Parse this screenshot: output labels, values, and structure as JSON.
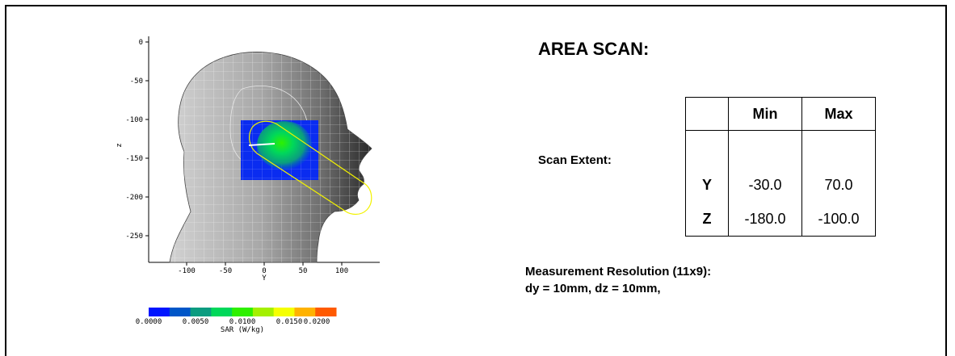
{
  "plot": {
    "z_axis_label": "z",
    "y_axis_label": "Y",
    "z_ticks": [
      "0",
      "-50",
      "-100",
      "-150",
      "-200",
      "-250"
    ],
    "y_ticks": [
      "-100",
      "-50",
      "0",
      "50",
      "100"
    ],
    "colorbar": {
      "colors": [
        "#0015ff",
        "#0056c8",
        "#0b9c80",
        "#00d85a",
        "#2ef000",
        "#a4f000",
        "#f5ff00",
        "#ffb200",
        "#ff5a00"
      ],
      "ticks": [
        "0.0000",
        "0.0050",
        "0.0100",
        "0.0150",
        "0.0200"
      ],
      "label": "SAR (W/kg)"
    }
  },
  "title": "AREA SCAN:",
  "scan_extent_label": "Scan Extent:",
  "table": {
    "headers": [
      "",
      "Min",
      "Max"
    ],
    "rows": [
      {
        "axis": "Y",
        "min": "-30.0",
        "max": "70.0"
      },
      {
        "axis": "Z",
        "min": "-180.0",
        "max": "-100.0"
      }
    ]
  },
  "resolution": {
    "line1": "Measurement Resolution (11x9):",
    "line2": "dy = 10mm, dz = 10mm,"
  }
}
